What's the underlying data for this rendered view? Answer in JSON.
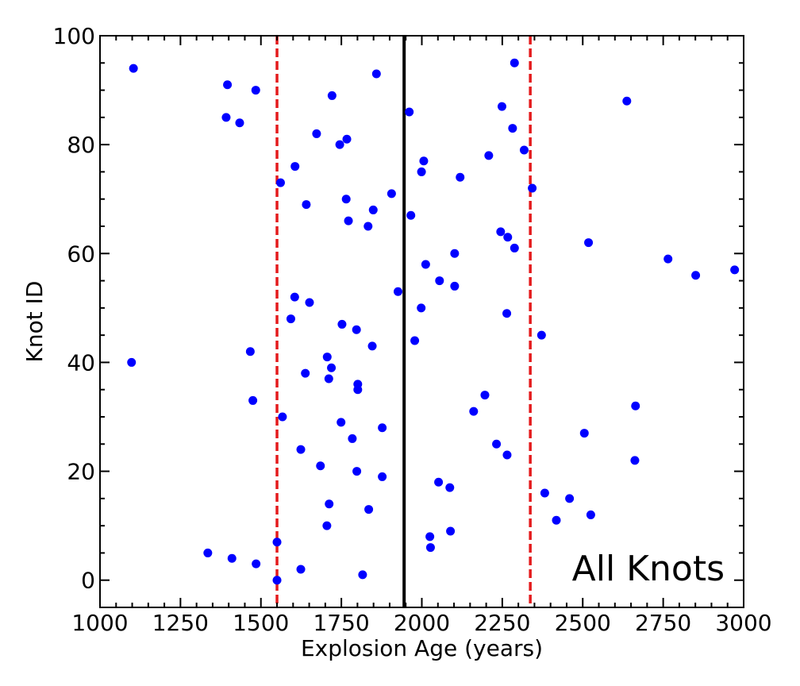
{
  "chart_data": {
    "type": "scatter",
    "title": "",
    "annotation": "All Knots",
    "xlabel": "Explosion Age (years)",
    "ylabel": "Knot ID",
    "xlim": [
      1000,
      3000
    ],
    "ylim": [
      -5,
      100
    ],
    "x_ticks": [
      1000,
      1250,
      1500,
      1750,
      2000,
      2250,
      2500,
      2750,
      3000
    ],
    "y_ticks": [
      0,
      20,
      40,
      60,
      80,
      100
    ],
    "grid": false,
    "point_color": "#0000ff",
    "reference_lines": [
      {
        "x": 1550,
        "style": "dashed",
        "color": "#e41a1c"
      },
      {
        "x": 1945,
        "style": "solid",
        "color": "#000000"
      },
      {
        "x": 2337,
        "style": "dashed",
        "color": "#e41a1c"
      }
    ],
    "points": [
      {
        "x": 1550,
        "y": 0
      },
      {
        "x": 1816,
        "y": 1
      },
      {
        "x": 1624,
        "y": 2
      },
      {
        "x": 1485,
        "y": 3
      },
      {
        "x": 1410,
        "y": 4
      },
      {
        "x": 1335,
        "y": 5
      },
      {
        "x": 2027,
        "y": 6
      },
      {
        "x": 1550,
        "y": 7
      },
      {
        "x": 2025,
        "y": 8
      },
      {
        "x": 2089,
        "y": 9
      },
      {
        "x": 1705,
        "y": 10
      },
      {
        "x": 2418,
        "y": 11
      },
      {
        "x": 2525,
        "y": 12
      },
      {
        "x": 1835,
        "y": 13
      },
      {
        "x": 1712,
        "y": 14
      },
      {
        "x": 2459,
        "y": 15
      },
      {
        "x": 2382,
        "y": 16
      },
      {
        "x": 2087,
        "y": 17
      },
      {
        "x": 2052,
        "y": 18
      },
      {
        "x": 1877,
        "y": 19
      },
      {
        "x": 1798,
        "y": 20
      },
      {
        "x": 1685,
        "y": 21
      },
      {
        "x": 2662,
        "y": 22
      },
      {
        "x": 2265,
        "y": 23
      },
      {
        "x": 1624,
        "y": 24
      },
      {
        "x": 2232,
        "y": 25
      },
      {
        "x": 1784,
        "y": 26
      },
      {
        "x": 2505,
        "y": 27
      },
      {
        "x": 1877,
        "y": 28
      },
      {
        "x": 1749,
        "y": 29
      },
      {
        "x": 1567,
        "y": 30
      },
      {
        "x": 2161,
        "y": 31
      },
      {
        "x": 2664,
        "y": 32
      },
      {
        "x": 1475,
        "y": 33
      },
      {
        "x": 2196,
        "y": 34
      },
      {
        "x": 1801,
        "y": 35
      },
      {
        "x": 1801,
        "y": 36
      },
      {
        "x": 1711,
        "y": 37
      },
      {
        "x": 1638,
        "y": 38
      },
      {
        "x": 1719,
        "y": 39
      },
      {
        "x": 1098,
        "y": 40
      },
      {
        "x": 1706,
        "y": 41
      },
      {
        "x": 1467,
        "y": 42
      },
      {
        "x": 1846,
        "y": 43
      },
      {
        "x": 1978,
        "y": 44
      },
      {
        "x": 2372,
        "y": 45
      },
      {
        "x": 1797,
        "y": 46
      },
      {
        "x": 1752,
        "y": 47
      },
      {
        "x": 1593,
        "y": 48
      },
      {
        "x": 2264,
        "y": 49
      },
      {
        "x": 1998,
        "y": 50
      },
      {
        "x": 1651,
        "y": 51
      },
      {
        "x": 1605,
        "y": 52
      },
      {
        "x": 1926,
        "y": 53
      },
      {
        "x": 2102,
        "y": 54
      },
      {
        "x": 2055,
        "y": 55
      },
      {
        "x": 2851,
        "y": 56
      },
      {
        "x": 2972,
        "y": 57
      },
      {
        "x": 2012,
        "y": 58
      },
      {
        "x": 2765,
        "y": 59
      },
      {
        "x": 2102,
        "y": 60
      },
      {
        "x": 2288,
        "y": 61
      },
      {
        "x": 2518,
        "y": 62
      },
      {
        "x": 2267,
        "y": 63
      },
      {
        "x": 2245,
        "y": 64
      },
      {
        "x": 1833,
        "y": 65
      },
      {
        "x": 1772,
        "y": 66
      },
      {
        "x": 1966,
        "y": 67
      },
      {
        "x": 1849,
        "y": 68
      },
      {
        "x": 1641,
        "y": 69
      },
      {
        "x": 1765,
        "y": 70
      },
      {
        "x": 1906,
        "y": 71
      },
      {
        "x": 2343,
        "y": 72
      },
      {
        "x": 1561,
        "y": 73
      },
      {
        "x": 2119,
        "y": 74
      },
      {
        "x": 1999,
        "y": 75
      },
      {
        "x": 1606,
        "y": 76
      },
      {
        "x": 2006,
        "y": 77
      },
      {
        "x": 2208,
        "y": 78
      },
      {
        "x": 2318,
        "y": 79
      },
      {
        "x": 1745,
        "y": 80
      },
      {
        "x": 1767,
        "y": 81
      },
      {
        "x": 1673,
        "y": 82
      },
      {
        "x": 2282,
        "y": 83
      },
      {
        "x": 1434,
        "y": 84
      },
      {
        "x": 1392,
        "y": 85
      },
      {
        "x": 1961,
        "y": 86
      },
      {
        "x": 2249,
        "y": 87
      },
      {
        "x": 2637,
        "y": 88
      },
      {
        "x": 1721,
        "y": 89
      },
      {
        "x": 1484,
        "y": 90
      },
      {
        "x": 1396,
        "y": 91
      },
      {
        "x": 1859,
        "y": 93
      },
      {
        "x": 1104,
        "y": 94
      },
      {
        "x": 2288,
        "y": 95
      }
    ]
  }
}
